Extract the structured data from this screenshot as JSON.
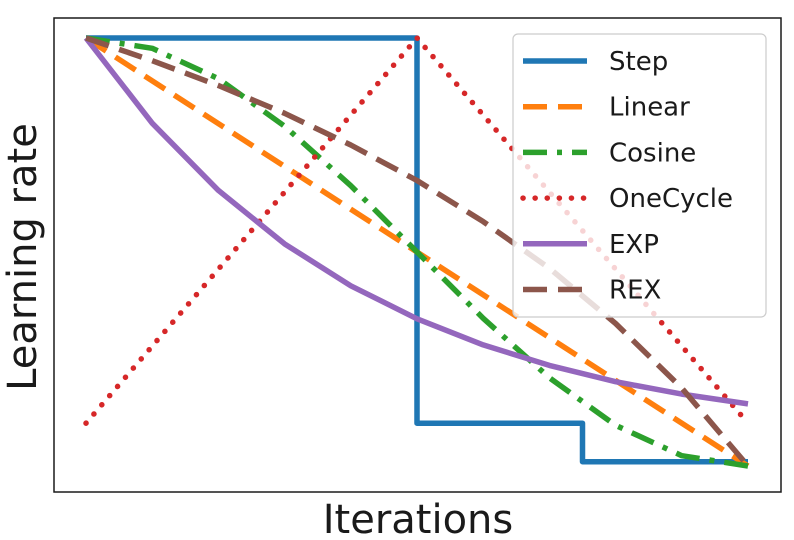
{
  "chart_data": {
    "type": "line",
    "title": "",
    "xlabel": "Iterations",
    "ylabel": "Learning rate",
    "x_ticks_shown": false,
    "y_ticks_shown": false,
    "grid": false,
    "xlim": [
      0,
      1
    ],
    "ylim": [
      0,
      1
    ],
    "legend": {
      "placement": "top-right"
    },
    "series": [
      {
        "name": "Step",
        "color": "#1f77b4",
        "linestyle": "solid",
        "points": [
          [
            0,
            1.0
          ],
          [
            0.5,
            1.0
          ],
          [
            0.5,
            0.1
          ],
          [
            0.75,
            0.1
          ],
          [
            0.75,
            0.01
          ],
          [
            1.0,
            0.01
          ]
        ]
      },
      {
        "name": "Linear",
        "color": "#ff7f0e",
        "linestyle": "dashed",
        "points": [
          [
            0,
            1.0
          ],
          [
            1.0,
            0.0
          ]
        ]
      },
      {
        "name": "Cosine",
        "color": "#2ca02c",
        "linestyle": "dashdot",
        "points": [
          [
            0,
            1.0
          ],
          [
            0.1,
            0.976
          ],
          [
            0.2,
            0.905
          ],
          [
            0.3,
            0.794
          ],
          [
            0.4,
            0.655
          ],
          [
            0.5,
            0.5
          ],
          [
            0.6,
            0.345
          ],
          [
            0.7,
            0.206
          ],
          [
            0.8,
            0.095
          ],
          [
            0.9,
            0.024
          ],
          [
            1.0,
            0.0
          ]
        ]
      },
      {
        "name": "OneCycle",
        "color": "#d62728",
        "linestyle": "dotted",
        "points": [
          [
            0,
            0.1
          ],
          [
            0.5,
            1.0
          ],
          [
            1.0,
            0.1
          ]
        ]
      },
      {
        "name": "EXP",
        "color": "#9467bd",
        "linestyle": "solid",
        "points": [
          [
            0,
            1.0
          ],
          [
            0.1,
            0.801
          ],
          [
            0.2,
            0.644
          ],
          [
            0.3,
            0.519
          ],
          [
            0.4,
            0.421
          ],
          [
            0.5,
            0.344
          ],
          [
            0.6,
            0.283
          ],
          [
            0.7,
            0.235
          ],
          [
            0.8,
            0.197
          ],
          [
            0.9,
            0.168
          ],
          [
            1.0,
            0.145
          ]
        ]
      },
      {
        "name": "REX",
        "color": "#8c564b",
        "linestyle": "dashed",
        "points": [
          [
            0,
            1.0
          ],
          [
            0.1,
            0.947
          ],
          [
            0.2,
            0.889
          ],
          [
            0.3,
            0.824
          ],
          [
            0.4,
            0.75
          ],
          [
            0.5,
            0.667
          ],
          [
            0.6,
            0.571
          ],
          [
            0.7,
            0.462
          ],
          [
            0.8,
            0.333
          ],
          [
            0.9,
            0.182
          ],
          [
            1.0,
            0.0
          ]
        ]
      }
    ]
  }
}
